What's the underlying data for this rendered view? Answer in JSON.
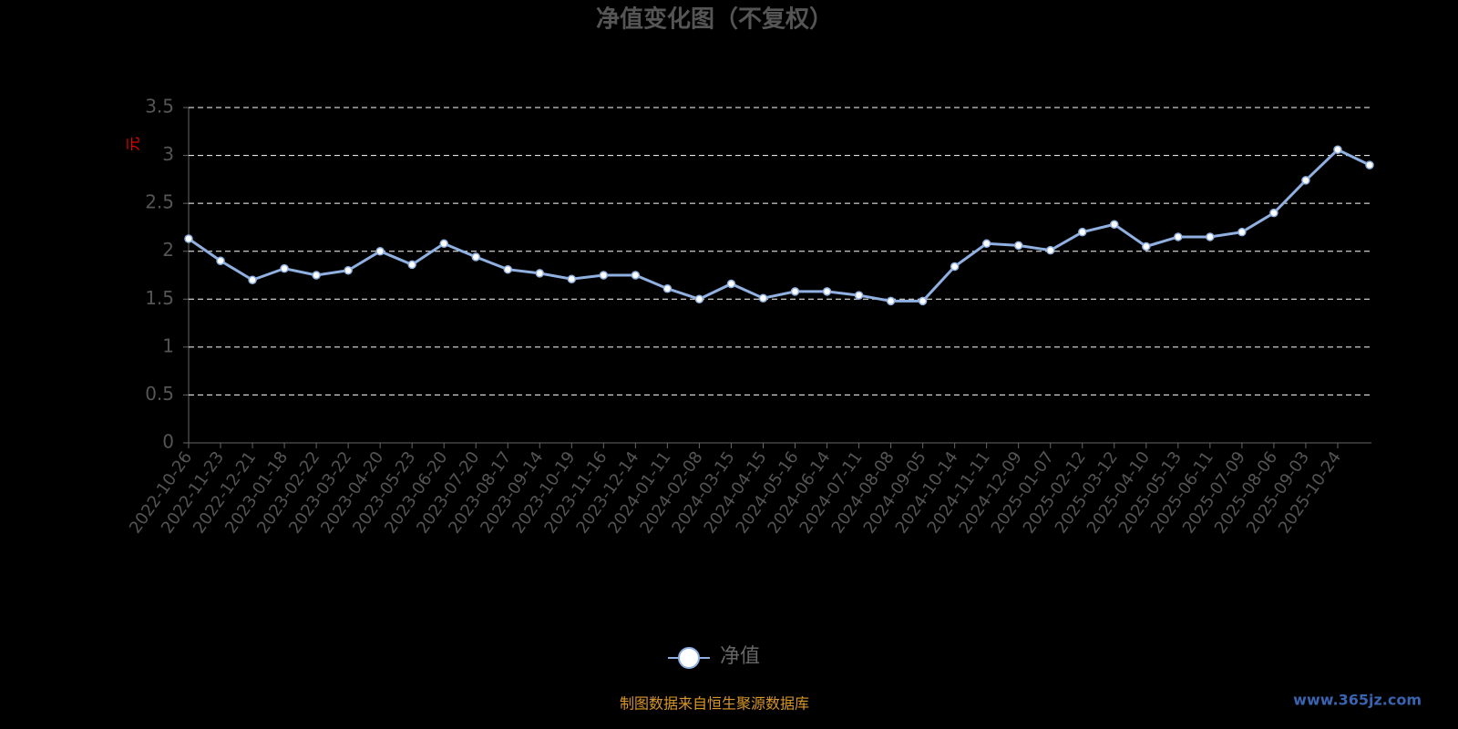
{
  "chart_data": {
    "type": "line",
    "title": "净值变化图（不复权）",
    "y_label": "元",
    "categories": [
      "2022-10-26",
      "2022-11-23",
      "2022-12-21",
      "2023-01-18",
      "2023-02-22",
      "2023-03-22",
      "2023-04-20",
      "2023-05-23",
      "2023-06-20",
      "2023-07-20",
      "2023-08-17",
      "2023-09-14",
      "2023-10-19",
      "2023-11-16",
      "2023-12-14",
      "2024-01-11",
      "2024-02-08",
      "2024-03-15",
      "2024-04-15",
      "2024-05-16",
      "2024-06-14",
      "2024-07-11",
      "2024-08-08",
      "2024-09-05",
      "2024-10-14",
      "2024-11-11",
      "2024-12-09",
      "2025-01-07",
      "2025-02-12",
      "2025-03-12",
      "2025-04-10",
      "2025-05-13",
      "2025-06-11",
      "2025-07-09",
      "2025-08-06",
      "2025-09-03",
      "2025-10-24",
      null
    ],
    "series": [
      {
        "name": "净值",
        "color": "#8fb0e0",
        "values": [
          2.13,
          1.9,
          1.7,
          1.82,
          1.75,
          1.8,
          2.0,
          1.86,
          2.08,
          1.94,
          1.81,
          1.77,
          1.71,
          1.75,
          1.75,
          1.61,
          1.5,
          1.66,
          1.51,
          1.58,
          1.58,
          1.54,
          1.48,
          1.48,
          1.84,
          2.08,
          2.06,
          2.01,
          2.2,
          2.28,
          2.05,
          2.15,
          2.15,
          2.2,
          2.4,
          2.74,
          3.06,
          2.9
        ]
      }
    ],
    "ylim": [
      0,
      3.5
    ],
    "yticks": [
      0,
      0.5,
      1,
      1.5,
      2,
      2.5,
      3,
      3.5
    ],
    "grid": true,
    "source": "制图数据来自恒生聚源数据库",
    "watermark": "www.365jz.com"
  }
}
